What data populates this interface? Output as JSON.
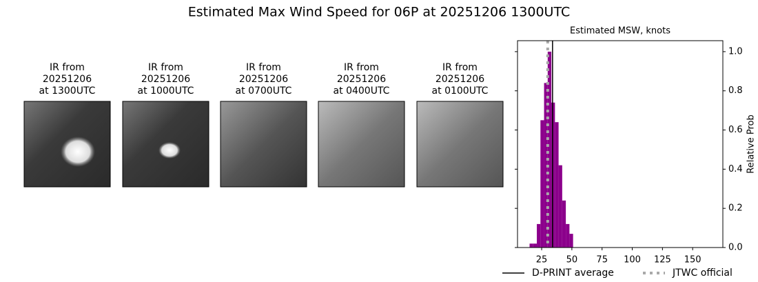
{
  "title": "Estimated Max Wind Speed for 06P at 20251206 1300UTC",
  "panels": [
    {
      "lines": [
        "IR from",
        "20251206",
        "at 1300UTC"
      ]
    },
    {
      "lines": [
        "IR from",
        "20251206",
        "at 1000UTC"
      ]
    },
    {
      "lines": [
        "IR from",
        "20251206",
        "at 0700UTC"
      ]
    },
    {
      "lines": [
        "IR from",
        "20251206",
        "at 0400UTC"
      ]
    },
    {
      "lines": [
        "IR from",
        "20251206",
        "at 0100UTC"
      ]
    }
  ],
  "chart_data": {
    "type": "histogram",
    "title": "Estimated MSW, knots",
    "y_label": "Relative Prob",
    "bins": [
      15,
      18,
      21,
      24,
      27,
      30,
      33,
      36,
      39,
      42,
      45,
      48,
      51
    ],
    "values": [
      0.02,
      0.02,
      0.12,
      0.65,
      0.84,
      1.0,
      0.74,
      0.64,
      0.42,
      0.24,
      0.12,
      0.07
    ],
    "color": "#8b008b",
    "xlim": [
      5,
      175
    ],
    "xticks": [
      25,
      50,
      75,
      100,
      125,
      150
    ],
    "ylim": [
      0,
      1.056
    ],
    "yticks": [
      {
        "value": 0,
        "label": "0.0"
      },
      {
        "value": 0.2,
        "label": "0.2"
      },
      {
        "value": 0.4,
        "label": "0.4"
      },
      {
        "value": 0.6,
        "label": "0.6"
      },
      {
        "value": 0.8,
        "label": "0.8"
      },
      {
        "value": 1,
        "label": "1.0"
      }
    ],
    "reference_lines": [
      {
        "name": "D-PRINT average",
        "value": 34,
        "color": "#000000",
        "style": "solid"
      },
      {
        "name": "JTWC official",
        "value": 30,
        "color": "#a9a9a9",
        "style": "dotted"
      }
    ]
  }
}
